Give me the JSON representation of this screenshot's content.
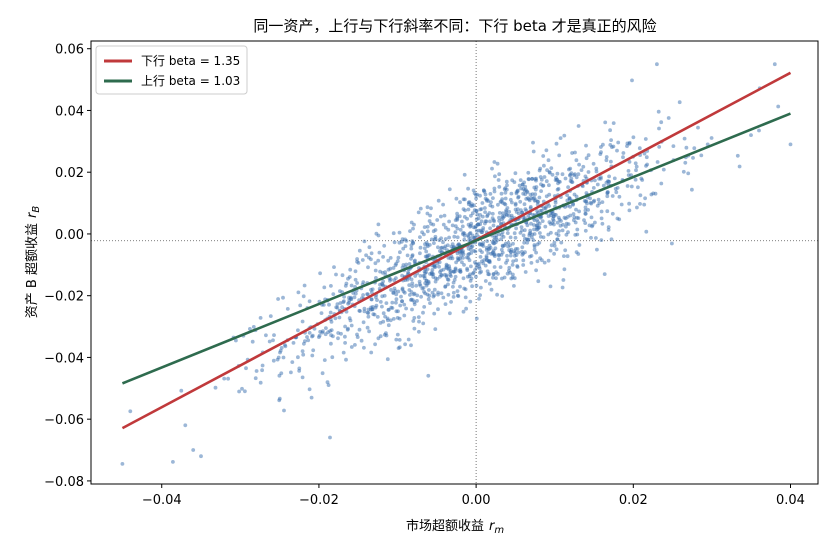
{
  "chart_data": {
    "type": "scatter",
    "title": "同一资产，上行与下行斜率不同：下行 beta 才是真正的风险",
    "xlabel": "市场超额收益",
    "xlabel_symbol": "r",
    "xlabel_sub": "m",
    "ylabel": "资产 B 超额收益",
    "ylabel_symbol": "r",
    "ylabel_sub": "B",
    "xlim": [
      -0.049,
      0.0435
    ],
    "ylim": [
      -0.081,
      0.0625
    ],
    "xticks": [
      -0.04,
      -0.02,
      0.0,
      0.02,
      0.04
    ],
    "yticks": [
      -0.08,
      -0.06,
      -0.04,
      -0.02,
      0.0,
      0.02,
      0.04,
      0.06
    ],
    "xtick_labels": [
      "−0.04",
      "−0.02",
      "0.00",
      "0.02",
      "0.04"
    ],
    "ytick_labels": [
      "−0.08",
      "−0.06",
      "−0.04",
      "−0.02",
      "0.00",
      "0.02",
      "0.04",
      "0.06"
    ],
    "reference_lines": {
      "x": 0.0,
      "y": -0.0022
    },
    "legend_position": "top-left",
    "scatter": {
      "color": "#3a6fb0",
      "count": 1500,
      "x_mean": 0.0,
      "x_std": 0.012,
      "intercept": -0.0022,
      "noise_std": 0.0092,
      "extremes": [
        [
          -0.045,
          -0.0745
        ],
        [
          -0.037,
          -0.062
        ],
        [
          -0.036,
          -0.07
        ],
        [
          -0.035,
          -0.072
        ],
        [
          0.023,
          0.055
        ],
        [
          0.038,
          0.055
        ],
        [
          0.04,
          0.029
        ]
      ]
    },
    "series": [
      {
        "name": "下行 beta = 1.35",
        "color": "#c0393b",
        "x": [
          -0.045,
          0.04
        ],
        "y": [
          -0.0629,
          0.0522
        ]
      },
      {
        "name": "上行 beta = 1.03",
        "color": "#2e6b4e",
        "x": [
          -0.045,
          0.04
        ],
        "y": [
          -0.0484,
          0.039
        ]
      }
    ]
  }
}
